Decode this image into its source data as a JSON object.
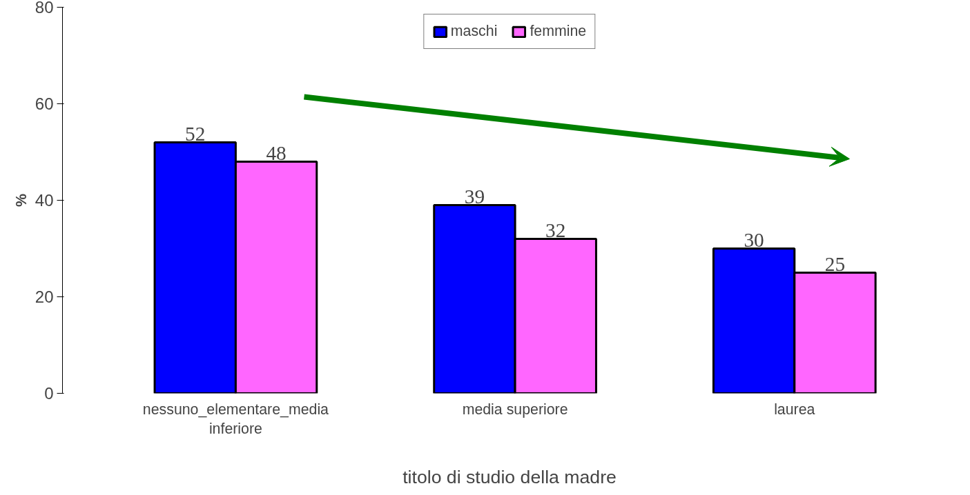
{
  "chart_data": {
    "type": "bar",
    "xlabel": "titolo di studio della madre",
    "ylabel": "%",
    "categories": [
      "nessuno_elementare_media\ninferiore",
      "media superiore",
      "laurea"
    ],
    "series": [
      {
        "name": "maschi",
        "color": "#0000ff",
        "values": [
          52,
          39,
          30
        ]
      },
      {
        "name": "femmine",
        "color": "#ff66ff",
        "values": [
          48,
          32,
          25
        ]
      }
    ],
    "ylim": [
      0,
      80
    ],
    "yticks": [
      0,
      20,
      40,
      60,
      80
    ],
    "grid": false,
    "legend": "top",
    "data_labels": true
  }
}
